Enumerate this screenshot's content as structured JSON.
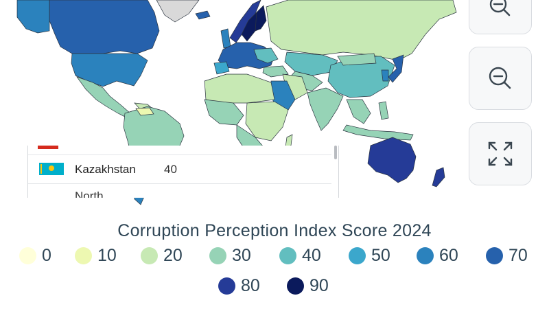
{
  "map": {
    "colors": {
      "ocean": "#ffffff",
      "no_data": "#d9d9d9",
      "border": "#2b3440"
    }
  },
  "controls": {
    "zoom_in_icon": "zoom-in-icon",
    "zoom_out_icon": "zoom-out-icon",
    "fullscreen_icon": "expand-icon"
  },
  "tooltip": {
    "country": "Kazakhstan",
    "score": "40",
    "next_country_partial": "North"
  },
  "legend": {
    "title": "Corruption Perception Index Score 2024",
    "items": [
      {
        "label": "0",
        "color": "#ffffd9"
      },
      {
        "label": "10",
        "color": "#edf8b1"
      },
      {
        "label": "20",
        "color": "#c7e9b4"
      },
      {
        "label": "30",
        "color": "#96d3b6"
      },
      {
        "label": "40",
        "color": "#62bebf"
      },
      {
        "label": "50",
        "color": "#3ba7cc"
      },
      {
        "label": "60",
        "color": "#2b82bd"
      },
      {
        "label": "70",
        "color": "#2661ac"
      },
      {
        "label": "80",
        "color": "#253b97"
      },
      {
        "label": "90",
        "color": "#0b1a5c"
      }
    ]
  }
}
